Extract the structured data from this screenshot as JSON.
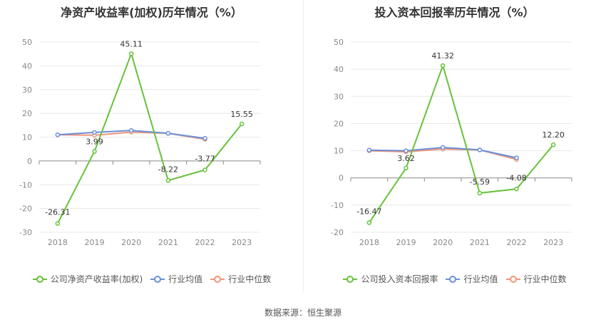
{
  "source": "数据来源：恒生聚源",
  "colors": {
    "company": "#67c23a",
    "avg": "#6b8fd9",
    "median": "#f0957a",
    "grid": "#e8e8e8",
    "axis": "#999999"
  },
  "chart_data": [
    {
      "type": "line",
      "title": "净资产收益率(加权)历年情况（%）",
      "categories": [
        "2018",
        "2019",
        "2020",
        "2021",
        "2022",
        "2023"
      ],
      "ylim": [
        -30,
        50
      ],
      "yticks": [
        50,
        40,
        30,
        20,
        10,
        0,
        -10,
        -20,
        -30
      ],
      "grid": true,
      "legend_position": "bottom",
      "series": [
        {
          "name": "公司净资产收益率(加权)",
          "key": "company",
          "values": [
            -26.31,
            3.99,
            45.11,
            -8.22,
            -3.77,
            15.55
          ],
          "labels": [
            "-26.31",
            "3.99",
            "45.11",
            "-8.22",
            "-3.77",
            "15.55"
          ]
        },
        {
          "name": "行业均值",
          "key": "avg",
          "values": [
            11.0,
            12.0,
            12.8,
            11.6,
            9.5,
            null
          ]
        },
        {
          "name": "行业中位数",
          "key": "median",
          "values": [
            11.0,
            10.8,
            12.1,
            11.6,
            9.1,
            null
          ]
        }
      ]
    },
    {
      "type": "line",
      "title": "投入资本回报率历年情况（%）",
      "categories": [
        "2018",
        "2019",
        "2020",
        "2021",
        "2022",
        "2023"
      ],
      "ylim": [
        -20,
        50
      ],
      "yticks": [
        50,
        40,
        30,
        20,
        10,
        0,
        -10,
        -20
      ],
      "grid": true,
      "legend_position": "bottom",
      "series": [
        {
          "name": "公司投入资本回报率",
          "key": "company",
          "values": [
            -16.47,
            3.62,
            41.32,
            -5.59,
            -4.08,
            12.2
          ],
          "labels": [
            "-16.47",
            "3.62",
            "41.32",
            "-5.59",
            "-4.08",
            "12.20"
          ]
        },
        {
          "name": "行业均值",
          "key": "avg",
          "values": [
            10.2,
            10.0,
            11.2,
            10.3,
            7.4,
            null
          ]
        },
        {
          "name": "行业中位数",
          "key": "median",
          "values": [
            10.0,
            9.6,
            10.6,
            10.3,
            6.8,
            null
          ]
        }
      ]
    }
  ]
}
